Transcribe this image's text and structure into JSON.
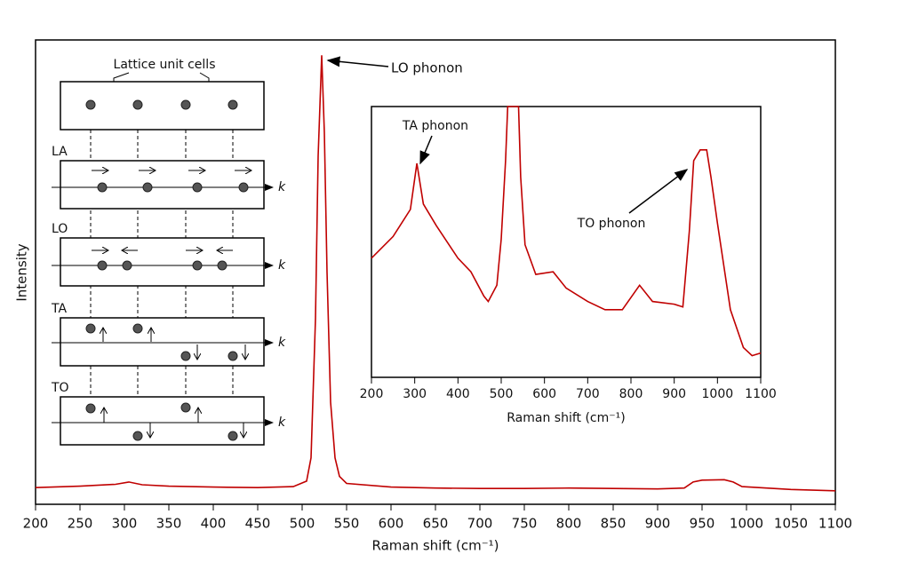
{
  "chart_data": [
    {
      "type": "line",
      "color": "#c00000",
      "x": [
        200,
        250,
        290,
        305,
        320,
        350,
        400,
        450,
        490,
        505,
        510,
        515,
        518,
        522,
        525,
        528,
        532,
        537,
        542,
        550,
        600,
        650,
        700,
        750,
        800,
        850,
        900,
        930,
        940,
        950,
        975,
        985,
        995,
        1050,
        1100
      ],
      "values": [
        3.6,
        3.9,
        4.3,
        4.8,
        4.2,
        3.9,
        3.7,
        3.6,
        3.8,
        5,
        10,
        40,
        75,
        96.7,
        80,
        50,
        22,
        10,
        6,
        4.5,
        3.7,
        3.5,
        3.4,
        3.4,
        3.5,
        3.4,
        3.3,
        3.5,
        4.8,
        5.2,
        5.3,
        4.8,
        3.8,
        3.2,
        2.9
      ],
      "xlim": [
        200,
        1100
      ],
      "ylim": [
        0,
        100
      ],
      "xticks": [
        200,
        250,
        300,
        350,
        400,
        450,
        500,
        550,
        600,
        650,
        700,
        750,
        800,
        850,
        900,
        950,
        1000,
        1050,
        1100
      ],
      "x_label": "Raman shift (cm⁻¹)",
      "y_label": "Intensity",
      "annotations": [
        {
          "text": "LO phonon"
        }
      ]
    },
    {
      "type": "line",
      "color": "#c00000",
      "x": [
        200,
        250,
        290,
        305,
        320,
        350,
        400,
        430,
        460,
        470,
        490,
        500,
        510,
        515,
        540,
        545,
        555,
        580,
        620,
        650,
        700,
        740,
        780,
        820,
        850,
        900,
        920,
        935,
        945,
        960,
        975,
        985,
        1000,
        1030,
        1060,
        1080,
        1100
      ],
      "values": [
        44,
        52,
        62,
        79,
        64,
        56,
        44,
        39,
        30,
        28,
        34,
        51,
        80,
        100,
        100,
        74,
        49,
        38,
        39,
        33,
        28,
        25,
        25,
        34,
        28,
        27,
        26,
        54,
        80,
        84,
        84,
        74,
        57,
        25,
        11,
        8,
        9
      ],
      "xlim": [
        200,
        1100
      ],
      "ylim": [
        0,
        100
      ],
      "xticks": [
        200,
        300,
        400,
        500,
        600,
        700,
        800,
        900,
        1000,
        1100
      ],
      "x_label": "Raman shift (cm⁻¹)",
      "annotations": [
        {
          "text": "TA phonon"
        },
        {
          "text": "TO phonon"
        }
      ]
    }
  ],
  "diagram": {
    "title": "Lattice unit cells",
    "modes": [
      "LA",
      "LO",
      "TA",
      "TO"
    ],
    "axis_label": "k"
  }
}
